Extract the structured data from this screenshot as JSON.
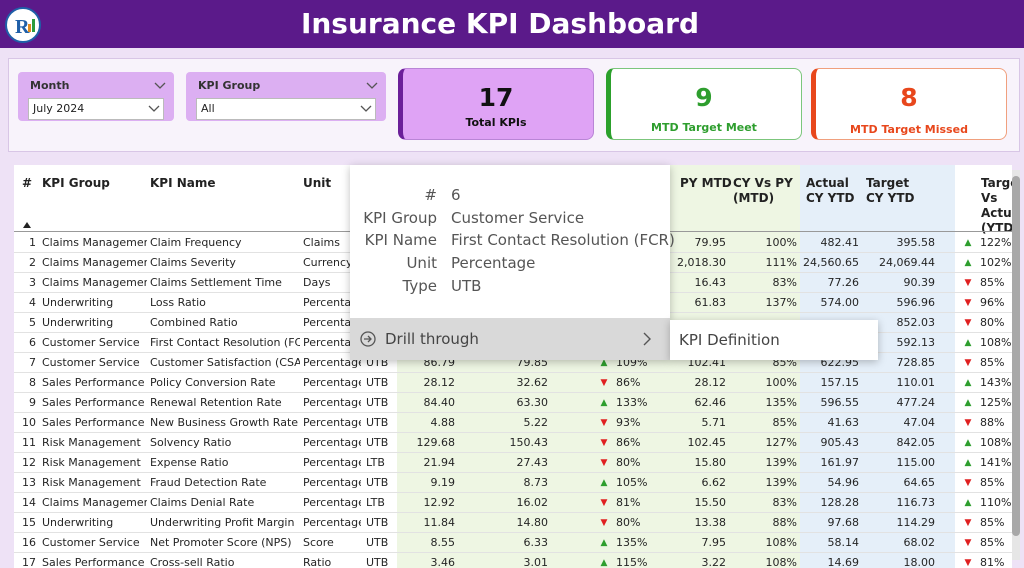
{
  "header": {
    "title": "Insurance KPI Dashboard"
  },
  "filters": [
    {
      "label": "Month",
      "value": "July 2024"
    },
    {
      "label": "KPI Group",
      "value": "All"
    }
  ],
  "cards": [
    {
      "value": 17,
      "label": "Total KPIs"
    },
    {
      "value": 9,
      "label": "MTD Target Meet"
    },
    {
      "value": 8,
      "label": "MTD Target Missed"
    }
  ],
  "table": {
    "headers": [
      "#",
      "KPI Group",
      "KPI Name",
      "Unit",
      "PY MTD",
      "CY Vs PY (MTD)",
      "Actual CY YTD",
      "Target CY YTD",
      "Target Vs Actual (YTD)"
    ],
    "rows": [
      [
        1,
        "Claims Management",
        "Claim Frequency",
        "Claims",
        null,
        null,
        null,
        null,
        null,
        "79.95",
        "100%",
        "482.41",
        "395.58",
        "▲",
        "122%"
      ],
      [
        2,
        "Claims Management",
        "Claims Severity",
        "Currency",
        null,
        null,
        null,
        null,
        null,
        "2,018.30",
        "111%",
        "24,560.65",
        "24,069.44",
        "▲",
        "102%"
      ],
      [
        3,
        "Claims Management",
        "Claims Settlement Time",
        "Days",
        null,
        null,
        null,
        null,
        null,
        "16.43",
        "83%",
        "77.26",
        "90.39",
        "▼",
        "85%"
      ],
      [
        4,
        "Underwriting",
        "Loss Ratio",
        "Percentage",
        null,
        null,
        null,
        null,
        null,
        "61.83",
        "137%",
        "574.00",
        "596.96",
        "▼",
        "96%"
      ],
      [
        5,
        "Underwriting",
        "Combined Ratio",
        "Percentage",
        null,
        null,
        null,
        null,
        null,
        null,
        null,
        null,
        "852.03",
        "▼",
        "80%"
      ],
      [
        6,
        "Customer Service",
        "First Contact Resolution (FCR)",
        "Percentage",
        null,
        null,
        null,
        null,
        null,
        null,
        null,
        null,
        "592.13",
        "▲",
        "108%"
      ],
      [
        7,
        "Customer Service",
        "Customer Satisfaction (CSAT)",
        "Percentage",
        "UTB",
        "86.79",
        "79.85",
        "▲",
        "109%",
        "102.41",
        "85%",
        "622.95",
        "728.85",
        "▼",
        "85%"
      ],
      [
        8,
        "Sales Performance",
        "Policy Conversion Rate",
        "Percentage",
        "UTB",
        "28.12",
        "32.62",
        "▼",
        "86%",
        "28.12",
        "100%",
        "157.15",
        "110.01",
        "▲",
        "143%"
      ],
      [
        9,
        "Sales Performance",
        "Renewal Retention Rate",
        "Percentage",
        "UTB",
        "84.40",
        "63.30",
        "▲",
        "133%",
        "62.46",
        "135%",
        "596.55",
        "477.24",
        "▲",
        "125%"
      ],
      [
        10,
        "Sales Performance",
        "New Business Growth Rate",
        "Percentage",
        "UTB",
        "4.88",
        "5.22",
        "▼",
        "93%",
        "5.71",
        "85%",
        "41.63",
        "47.04",
        "▼",
        "88%"
      ],
      [
        11,
        "Risk Management",
        "Solvency Ratio",
        "Percentage",
        "UTB",
        "129.68",
        "150.43",
        "▼",
        "86%",
        "102.45",
        "127%",
        "905.43",
        "842.05",
        "▲",
        "108%"
      ],
      [
        12,
        "Risk Management",
        "Expense Ratio",
        "Percentage",
        "LTB",
        "21.94",
        "27.43",
        "▼",
        "80%",
        "15.80",
        "139%",
        "161.97",
        "115.00",
        "▲",
        "141%"
      ],
      [
        13,
        "Risk Management",
        "Fraud Detection Rate",
        "Percentage",
        "UTB",
        "9.19",
        "8.73",
        "▲",
        "105%",
        "6.62",
        "139%",
        "54.96",
        "64.65",
        "▼",
        "85%"
      ],
      [
        14,
        "Claims Management",
        "Claims Denial Rate",
        "Percentage",
        "LTB",
        "12.92",
        "16.02",
        "▼",
        "81%",
        "15.50",
        "83%",
        "128.28",
        "116.73",
        "▲",
        "110%"
      ],
      [
        15,
        "Underwriting",
        "Underwriting Profit Margin",
        "Percentage",
        "UTB",
        "11.84",
        "14.80",
        "▼",
        "80%",
        "13.38",
        "88%",
        "97.68",
        "114.29",
        "▼",
        "85%"
      ],
      [
        16,
        "Customer Service",
        "Net Promoter Score (NPS)",
        "Score",
        "UTB",
        "8.55",
        "6.33",
        "▲",
        "135%",
        "7.95",
        "108%",
        "58.14",
        "68.02",
        "▼",
        "85%"
      ],
      [
        17,
        "Sales Performance",
        "Cross-sell Ratio",
        "Ratio",
        "UTB",
        "3.46",
        "3.01",
        "▲",
        "115%",
        "3.22",
        "108%",
        "14.69",
        "18.00",
        "▼",
        "81%"
      ]
    ]
  },
  "tooltip": {
    "fields": [
      {
        "label": "#",
        "value": "6"
      },
      {
        "label": "KPI Group",
        "value": "Customer Service"
      },
      {
        "label": "KPI Name",
        "value": "First Contact Resolution (FCR)"
      },
      {
        "label": "Unit",
        "value": "Percentage"
      },
      {
        "label": "Type",
        "value": "UTB"
      }
    ],
    "menu_item": "Drill through",
    "submenu_item": "KPI Definition"
  }
}
